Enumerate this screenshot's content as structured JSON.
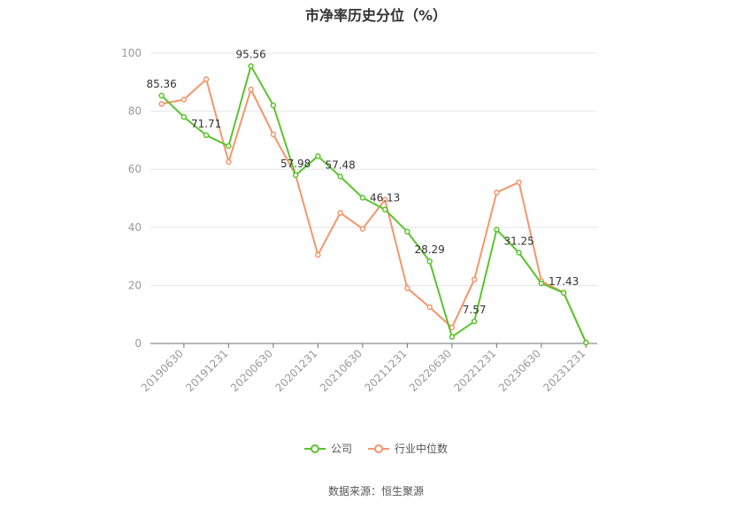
{
  "chart_data": {
    "type": "line",
    "title": "市净率历史分位（%）",
    "ylim": [
      0,
      100
    ],
    "y_ticks": [
      "0",
      "20",
      "40",
      "60",
      "80",
      "100"
    ],
    "x_tick_labels": [
      "20190630",
      "20191231",
      "20200630",
      "20201231",
      "20210630",
      "20211231",
      "20220630",
      "20221231",
      "20230630",
      "20231231"
    ],
    "grid": true,
    "legend_position": "bottom",
    "series": [
      {
        "name": "公司",
        "color": "#5ac42c",
        "values": [
          85.36,
          78.0,
          71.71,
          68.0,
          95.56,
          82.0,
          57.98,
          64.5,
          57.48,
          50.2,
          46.13,
          38.5,
          28.29,
          2.3,
          7.57,
          39.2,
          31.25,
          20.7,
          17.43,
          0.3
        ],
        "labels": [
          "85.36",
          "",
          "71.71",
          "",
          "95.56",
          "",
          "57.98",
          "",
          "57.48",
          "",
          "46.13",
          "",
          "28.29",
          "",
          "7.57",
          "",
          "31.25",
          "",
          "17.43",
          ""
        ]
      },
      {
        "name": "行业中位数",
        "color": "#f5956b",
        "values": [
          82.5,
          84.0,
          91.0,
          62.5,
          87.5,
          72.0,
          58.0,
          30.5,
          45.0,
          39.5,
          49.5,
          19.0,
          12.5,
          5.5,
          22.0,
          52.0,
          55.5,
          21.5,
          17.5,
          0.3
        ]
      }
    ]
  },
  "source": "数据来源：恒生聚源"
}
